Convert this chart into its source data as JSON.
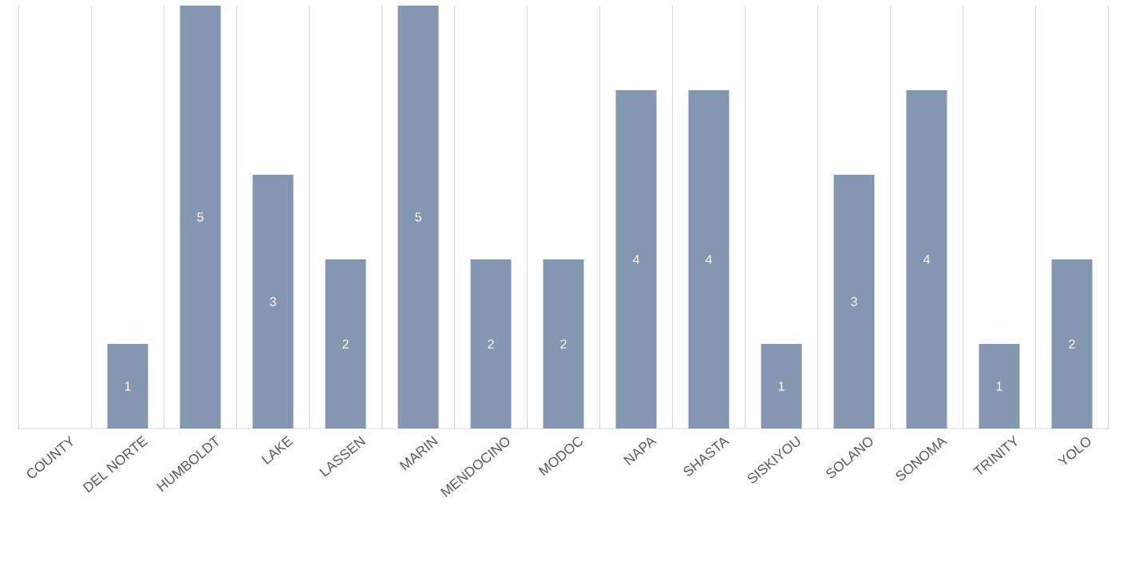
{
  "chart_data": {
    "type": "bar",
    "categories": [
      "COUNTY",
      "DEL NORTE",
      "HUMBOLDT",
      "LAKE",
      "LASSEN",
      "MARIN",
      "MENDOCINO",
      "MODOC",
      "NAPA",
      "SHASTA",
      "SISKIYOU",
      "SOLANO",
      "SONOMA",
      "TRINITY",
      "YOLO"
    ],
    "values": [
      null,
      1,
      5,
      3,
      2,
      5,
      2,
      2,
      4,
      4,
      1,
      3,
      4,
      1,
      2
    ],
    "color": "#8497b0",
    "data_labels": true,
    "grid": "x",
    "ylim": [
      0,
      5
    ]
  }
}
